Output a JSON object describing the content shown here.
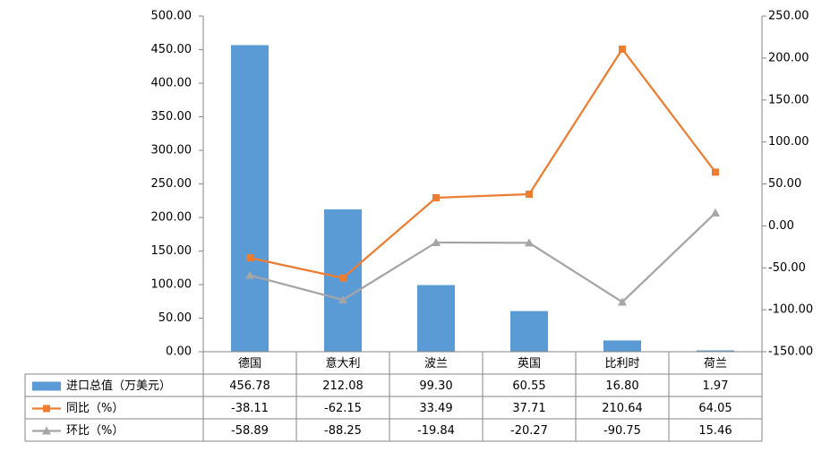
{
  "chart_data": {
    "type": "bar",
    "categories": [
      "德国",
      "意大利",
      "波兰",
      "英国",
      "比利时",
      "荷兰"
    ],
    "series": [
      {
        "name": "进口总值（万美元）",
        "type": "bar",
        "axis": "left",
        "values": [
          456.78,
          212.08,
          99.3,
          60.55,
          16.8,
          1.97
        ],
        "labels": [
          "456.78",
          "212.08",
          "99.30",
          "60.55",
          "16.80",
          "1.97"
        ],
        "color": "#5b9bd5",
        "marker": "square"
      },
      {
        "name": "同比（%）",
        "type": "line",
        "axis": "right",
        "values": [
          -38.11,
          -62.15,
          33.49,
          37.71,
          210.64,
          64.05
        ],
        "labels": [
          "-38.11",
          "-62.15",
          "33.49",
          "37.71",
          "210.64",
          "64.05"
        ],
        "color": "#ed7d31",
        "marker": "square"
      },
      {
        "name": "环比（%）",
        "type": "line",
        "axis": "right",
        "values": [
          -58.89,
          -88.25,
          -19.84,
          -20.27,
          -90.75,
          15.46
        ],
        "labels": [
          "-58.89",
          "-88.25",
          "-19.84",
          "-20.27",
          "-90.75",
          "15.46"
        ],
        "color": "#a5a5a5",
        "marker": "triangle"
      }
    ],
    "y_left": {
      "min": 0,
      "max": 500,
      "step": 50,
      "ticks": [
        "0.00",
        "50.00",
        "100.00",
        "150.00",
        "200.00",
        "250.00",
        "300.00",
        "350.00",
        "400.00",
        "450.00",
        "500.00"
      ]
    },
    "y_right": {
      "min": -150,
      "max": 250,
      "step": 50,
      "ticks": [
        "-150.00",
        "-100.00",
        "-50.00",
        "0.00",
        "50.00",
        "100.00",
        "150.00",
        "200.00",
        "250.00"
      ]
    },
    "gridlines": false,
    "legend": "data table below chart"
  }
}
